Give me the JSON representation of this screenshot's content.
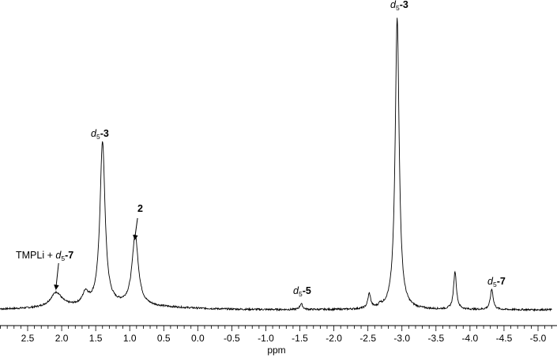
{
  "chart_data": {
    "type": "line",
    "xlabel": "ppm",
    "ylabel": "",
    "title": "",
    "x_reversed": true,
    "xlim": [
      2.95,
      -5.2
    ],
    "ylim": [
      0,
      1
    ],
    "grid": false,
    "legend": "none",
    "x_ticks": [
      "2.5",
      "2.0",
      "1.5",
      "1.0",
      "0.5",
      "0.0",
      "-0.5",
      "-1.0",
      "-1.5",
      "-2.0",
      "-2.5",
      "-3.0",
      "-3.5",
      "-4.0",
      "-4.5",
      "-5.0"
    ],
    "peaks": [
      {
        "ppm": 2.08,
        "height": 0.05,
        "width": 0.1
      },
      {
        "ppm": 1.65,
        "height": 0.04,
        "width": 0.05
      },
      {
        "ppm": 1.4,
        "height": 0.56,
        "width": 0.045
      },
      {
        "ppm": 0.92,
        "height": 0.24,
        "width": 0.055
      },
      {
        "ppm": -1.52,
        "height": 0.02,
        "width": 0.025
      },
      {
        "ppm": -2.52,
        "height": 0.05,
        "width": 0.025
      },
      {
        "ppm": -2.68,
        "height": 0.01,
        "width": 0.02
      },
      {
        "ppm": -2.93,
        "height": 1.0,
        "width": 0.035
      },
      {
        "ppm": -3.78,
        "height": 0.13,
        "width": 0.025
      },
      {
        "ppm": -4.32,
        "height": 0.07,
        "width": 0.025
      }
    ],
    "annotations": [
      {
        "ppm": 1.4,
        "text_italic": "d",
        "text_sub": "5",
        "text_bold": "-3",
        "arrow": false
      },
      {
        "ppm": 0.92,
        "text_bold": "2",
        "arrow": true
      },
      {
        "ppm": 2.08,
        "text_plain": "TMPLi + ",
        "text_italic": "d",
        "text_sub": "5",
        "text_bold": "-7",
        "arrow": true
      },
      {
        "ppm": -1.52,
        "text_italic": "d",
        "text_sub": "5",
        "text_bold": "-5",
        "arrow": false
      },
      {
        "ppm": -2.93,
        "text_italic": "d",
        "text_sub": "5",
        "text_bold": "-3",
        "arrow": false
      },
      {
        "ppm": -4.32,
        "text_italic": "d",
        "text_sub": "5",
        "text_bold": "-7",
        "arrow": false
      }
    ]
  }
}
